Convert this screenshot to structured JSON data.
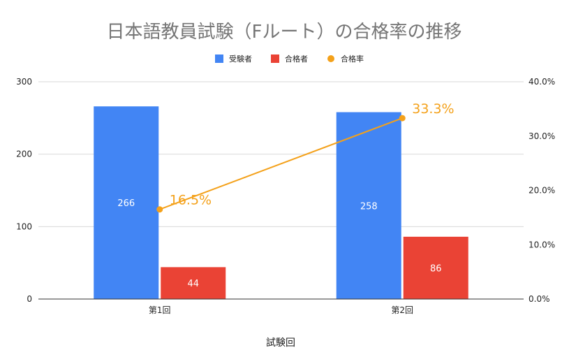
{
  "chart_data": {
    "type": "bar",
    "title": "日本語教員試験（Fルート）の合格率の推移",
    "xlabel": "試験回",
    "categories": [
      "第1回",
      "第2回"
    ],
    "series": [
      {
        "name": "受験者",
        "type": "bar",
        "axis": "left",
        "color": "#4285f4",
        "values": [
          266,
          258
        ],
        "labels": [
          "266",
          "258"
        ]
      },
      {
        "name": "合格者",
        "type": "bar",
        "axis": "left",
        "color": "#ea4335",
        "values": [
          44,
          86
        ],
        "labels": [
          "44",
          "86"
        ]
      },
      {
        "name": "合格率",
        "type": "line",
        "axis": "right",
        "color": "#f4a11a",
        "values": [
          16.5,
          33.3
        ],
        "labels": [
          "16.5%",
          "33.3%"
        ]
      }
    ],
    "ylim_left": [
      0,
      300
    ],
    "yticks_left": [
      "0",
      "100",
      "200",
      "300"
    ],
    "ylim_right": [
      0,
      40
    ],
    "yticks_right": [
      "0.0%",
      "10.0%",
      "20.0%",
      "30.0%",
      "40.0%"
    ],
    "grid": true,
    "legend_position": "top"
  }
}
